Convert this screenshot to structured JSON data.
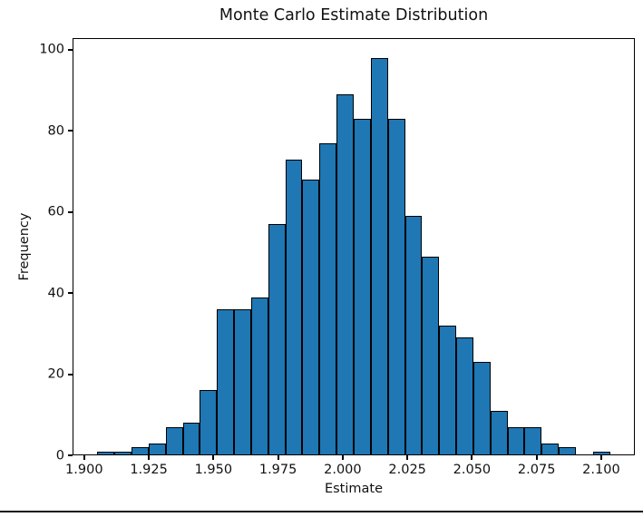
{
  "chart_data": {
    "type": "histogram",
    "title": "Monte Carlo Estimate Distribution",
    "xlabel": "Estimate",
    "ylabel": "Frequency",
    "bar_color": "#1f77b4",
    "bar_edge_color": "#000000",
    "bin_start": 1.9051,
    "bin_width": 0.00661,
    "counts": [
      1,
      1,
      2,
      3,
      7,
      8,
      16,
      36,
      36,
      39,
      57,
      73,
      68,
      77,
      89,
      83,
      98,
      83,
      59,
      49,
      32,
      29,
      23,
      11,
      7,
      7,
      3,
      2,
      0,
      1
    ],
    "xlim": [
      1.8955,
      2.113
    ],
    "ylim": [
      0,
      102.9
    ],
    "xticks": {
      "values": [
        1.9,
        1.925,
        1.95,
        1.975,
        2.0,
        2.025,
        2.05,
        2.075,
        2.1
      ],
      "labels": [
        "1.900",
        "1.925",
        "1.950",
        "1.975",
        "2.000",
        "2.025",
        "2.050",
        "2.075",
        "2.100"
      ]
    },
    "yticks": {
      "values": [
        0,
        20,
        40,
        60,
        80,
        100
      ],
      "labels": [
        "0",
        "20",
        "40",
        "60",
        "80",
        "100"
      ]
    },
    "grid": false,
    "legend": null
  }
}
